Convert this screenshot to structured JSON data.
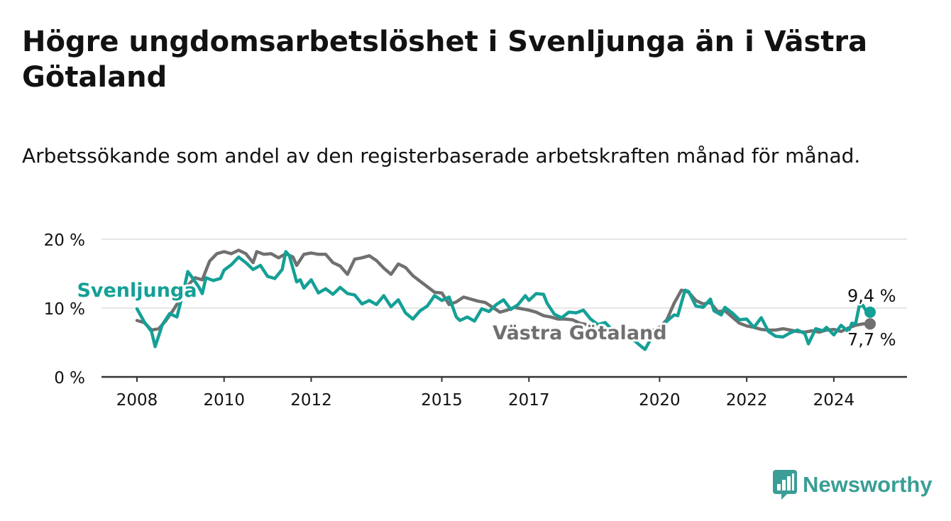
{
  "colors": {
    "svenljunga": "#14a096",
    "vastra_gotaland": "#707070",
    "text": "#121212",
    "grid": "#dddddd",
    "axis": "#333333",
    "brand": "#3a9e96"
  },
  "brand": {
    "name": "Newsworthy",
    "icon": "newsworthy-logo-icon"
  },
  "chart_data": {
    "type": "line",
    "title": "Högre ungdomsarbetslöshet i Svenljunga än i Västra Götaland",
    "subtitle": "Arbetssökande som andel av den registerbaserade arbetskraften månad för månad.",
    "xlabel": "",
    "ylabel": "",
    "xlim": [
      "2008-01",
      "2024-11"
    ],
    "ylim": [
      0,
      20
    ],
    "y_ticks": [
      {
        "value": 0,
        "label": "0 %"
      },
      {
        "value": 10,
        "label": "10 %"
      },
      {
        "value": 20,
        "label": "20 %"
      }
    ],
    "x_ticks": [
      {
        "value": "2008-01",
        "label": "2008"
      },
      {
        "value": "2010-01",
        "label": "2010"
      },
      {
        "value": "2012-01",
        "label": "2012"
      },
      {
        "value": "2015-01",
        "label": "2015"
      },
      {
        "value": "2017-01",
        "label": "2017"
      },
      {
        "value": "2020-01",
        "label": "2020"
      },
      {
        "value": "2022-01",
        "label": "2022"
      },
      {
        "value": "2024-01",
        "label": "2024"
      }
    ],
    "grid": "horizontal",
    "legend": "direct labels on the lines",
    "series": [
      {
        "name": "Svenljunga",
        "color": "#14a096",
        "label_at": "2012-10",
        "end_label": "9,4 %",
        "points": [
          [
            "2008-01",
            9.9
          ],
          [
            "2008-03",
            8.0
          ],
          [
            "2008-05",
            6.6
          ],
          [
            "2008-06",
            4.4
          ],
          [
            "2008-08",
            7.6
          ],
          [
            "2008-10",
            9.2
          ],
          [
            "2008-12",
            8.7
          ],
          [
            "2009-02",
            12.9
          ],
          [
            "2009-03",
            15.3
          ],
          [
            "2009-04",
            14.6
          ],
          [
            "2009-06",
            13.1
          ],
          [
            "2009-07",
            12.1
          ],
          [
            "2009-08",
            14.4
          ],
          [
            "2009-10",
            14.0
          ],
          [
            "2009-12",
            14.3
          ],
          [
            "2010-01",
            15.5
          ],
          [
            "2010-03",
            16.3
          ],
          [
            "2010-05",
            17.4
          ],
          [
            "2010-07",
            16.6
          ],
          [
            "2010-09",
            15.6
          ],
          [
            "2010-11",
            16.2
          ],
          [
            "2011-01",
            14.6
          ],
          [
            "2011-03",
            14.3
          ],
          [
            "2011-05",
            15.6
          ],
          [
            "2011-06",
            18.2
          ],
          [
            "2011-07",
            17.6
          ],
          [
            "2011-09",
            13.8
          ],
          [
            "2011-10",
            14.1
          ],
          [
            "2011-11",
            12.9
          ],
          [
            "2012-01",
            14.1
          ],
          [
            "2012-03",
            12.2
          ],
          [
            "2012-05",
            12.8
          ],
          [
            "2012-07",
            12.0
          ],
          [
            "2012-09",
            13.0
          ],
          [
            "2012-11",
            12.1
          ],
          [
            "2013-01",
            11.9
          ],
          [
            "2013-03",
            10.6
          ],
          [
            "2013-05",
            11.1
          ],
          [
            "2013-07",
            10.5
          ],
          [
            "2013-09",
            11.8
          ],
          [
            "2013-11",
            10.2
          ],
          [
            "2014-01",
            11.2
          ],
          [
            "2014-03",
            9.3
          ],
          [
            "2014-05",
            8.4
          ],
          [
            "2014-07",
            9.6
          ],
          [
            "2014-09",
            10.3
          ],
          [
            "2014-11",
            11.8
          ],
          [
            "2015-01",
            11.1
          ],
          [
            "2015-03",
            11.6
          ],
          [
            "2015-05",
            8.7
          ],
          [
            "2015-06",
            8.2
          ],
          [
            "2015-08",
            8.7
          ],
          [
            "2015-10",
            8.1
          ],
          [
            "2015-12",
            9.9
          ],
          [
            "2016-02",
            9.5
          ],
          [
            "2016-04",
            10.5
          ],
          [
            "2016-06",
            11.2
          ],
          [
            "2016-08",
            9.8
          ],
          [
            "2016-10",
            10.5
          ],
          [
            "2016-12",
            11.8
          ],
          [
            "2017-01",
            11.1
          ],
          [
            "2017-03",
            12.1
          ],
          [
            "2017-05",
            12.0
          ],
          [
            "2017-06",
            10.7
          ],
          [
            "2017-08",
            9.1
          ],
          [
            "2017-10",
            8.6
          ],
          [
            "2017-12",
            9.4
          ],
          [
            "2018-02",
            9.3
          ],
          [
            "2018-04",
            9.7
          ],
          [
            "2018-06",
            8.4
          ],
          [
            "2018-08",
            7.6
          ],
          [
            "2018-10",
            7.9
          ],
          [
            "2018-12",
            6.8
          ],
          [
            "2019-02",
            6.4
          ],
          [
            "2019-04",
            5.9
          ],
          [
            "2019-06",
            5.3
          ],
          [
            "2019-08",
            4.4
          ],
          [
            "2019-09",
            4.0
          ],
          [
            "2019-11",
            5.9
          ],
          [
            "2020-01",
            6.8
          ],
          [
            "2020-03",
            8.1
          ],
          [
            "2020-05",
            9.0
          ],
          [
            "2020-06",
            8.9
          ],
          [
            "2020-08",
            12.6
          ],
          [
            "2020-09",
            12.4
          ],
          [
            "2020-11",
            10.3
          ],
          [
            "2021-01",
            10.1
          ],
          [
            "2021-03",
            11.3
          ],
          [
            "2021-04",
            9.6
          ],
          [
            "2021-06",
            9.0
          ],
          [
            "2021-07",
            10.1
          ],
          [
            "2021-09",
            9.3
          ],
          [
            "2021-11",
            8.3
          ],
          [
            "2022-01",
            8.4
          ],
          [
            "2022-03",
            7.2
          ],
          [
            "2022-05",
            8.6
          ],
          [
            "2022-07",
            6.6
          ],
          [
            "2022-09",
            5.9
          ],
          [
            "2022-11",
            5.8
          ],
          [
            "2023-01",
            6.4
          ],
          [
            "2023-03",
            6.8
          ],
          [
            "2023-05",
            6.3
          ],
          [
            "2023-06",
            4.8
          ],
          [
            "2023-08",
            7.0
          ],
          [
            "2023-10",
            6.7
          ],
          [
            "2023-11",
            7.2
          ],
          [
            "2024-01",
            6.1
          ],
          [
            "2024-03",
            7.5
          ],
          [
            "2024-05",
            6.6
          ],
          [
            "2024-06",
            7.8
          ],
          [
            "2024-07",
            7.7
          ],
          [
            "2024-08",
            10.3
          ],
          [
            "2024-09",
            10.4
          ],
          [
            "2024-10",
            9.5
          ],
          [
            "2024-11",
            9.4
          ]
        ]
      },
      {
        "name": "Västra Götaland",
        "color": "#707070",
        "label_at": "2018-03",
        "end_label": "7,7 %",
        "points": [
          [
            "2008-01",
            8.2
          ],
          [
            "2008-03",
            7.9
          ],
          [
            "2008-05",
            6.8
          ],
          [
            "2008-07",
            7.0
          ],
          [
            "2008-09",
            8.2
          ],
          [
            "2008-11",
            9.7
          ],
          [
            "2009-01",
            11.4
          ],
          [
            "2009-03",
            13.3
          ],
          [
            "2009-05",
            14.4
          ],
          [
            "2009-07",
            14.1
          ],
          [
            "2009-09",
            16.8
          ],
          [
            "2009-11",
            17.9
          ],
          [
            "2010-01",
            18.2
          ],
          [
            "2010-03",
            17.9
          ],
          [
            "2010-05",
            18.4
          ],
          [
            "2010-07",
            17.9
          ],
          [
            "2010-09",
            16.6
          ],
          [
            "2010-10",
            18.2
          ],
          [
            "2010-12",
            17.8
          ],
          [
            "2011-02",
            17.9
          ],
          [
            "2011-04",
            17.3
          ],
          [
            "2011-06",
            17.9
          ],
          [
            "2011-08",
            17.4
          ],
          [
            "2011-09",
            16.2
          ],
          [
            "2011-11",
            17.8
          ],
          [
            "2012-01",
            18.0
          ],
          [
            "2012-03",
            17.8
          ],
          [
            "2012-05",
            17.8
          ],
          [
            "2012-07",
            16.6
          ],
          [
            "2012-09",
            16.1
          ],
          [
            "2012-11",
            14.9
          ],
          [
            "2013-01",
            17.1
          ],
          [
            "2013-03",
            17.3
          ],
          [
            "2013-05",
            17.6
          ],
          [
            "2013-07",
            16.9
          ],
          [
            "2013-09",
            15.8
          ],
          [
            "2013-11",
            14.9
          ],
          [
            "2014-01",
            16.4
          ],
          [
            "2014-03",
            15.9
          ],
          [
            "2014-05",
            14.7
          ],
          [
            "2014-07",
            13.9
          ],
          [
            "2014-09",
            13.1
          ],
          [
            "2014-11",
            12.3
          ],
          [
            "2015-01",
            12.2
          ],
          [
            "2015-03",
            10.5
          ],
          [
            "2015-05",
            10.9
          ],
          [
            "2015-07",
            11.6
          ],
          [
            "2015-09",
            11.3
          ],
          [
            "2015-11",
            11.0
          ],
          [
            "2016-01",
            10.8
          ],
          [
            "2016-03",
            10.1
          ],
          [
            "2016-05",
            9.4
          ],
          [
            "2016-07",
            9.7
          ],
          [
            "2016-09",
            10.1
          ],
          [
            "2016-11",
            9.9
          ],
          [
            "2017-01",
            9.7
          ],
          [
            "2017-03",
            9.4
          ],
          [
            "2017-05",
            8.9
          ],
          [
            "2017-07",
            8.7
          ],
          [
            "2017-09",
            8.4
          ],
          [
            "2017-11",
            8.4
          ],
          [
            "2018-01",
            8.3
          ],
          [
            "2018-03",
            7.8
          ],
          [
            "2018-05",
            7.6
          ],
          [
            "2018-07",
            7.0
          ],
          [
            "2018-09",
            6.9
          ],
          [
            "2018-11",
            6.6
          ],
          [
            "2019-01",
            6.3
          ],
          [
            "2019-03",
            6.0
          ],
          [
            "2019-05",
            5.8
          ],
          [
            "2019-07",
            5.9
          ],
          [
            "2019-09",
            6.2
          ],
          [
            "2019-11",
            6.7
          ],
          [
            "2020-01",
            7.2
          ],
          [
            "2020-03",
            8.3
          ],
          [
            "2020-05",
            10.7
          ],
          [
            "2020-07",
            12.6
          ],
          [
            "2020-09",
            12.3
          ],
          [
            "2020-11",
            11.1
          ],
          [
            "2021-01",
            10.6
          ],
          [
            "2021-03",
            10.8
          ],
          [
            "2021-05",
            9.5
          ],
          [
            "2021-07",
            9.6
          ],
          [
            "2021-09",
            8.7
          ],
          [
            "2021-11",
            7.8
          ],
          [
            "2022-01",
            7.4
          ],
          [
            "2022-03",
            7.2
          ],
          [
            "2022-05",
            6.9
          ],
          [
            "2022-07",
            6.8
          ],
          [
            "2022-09",
            6.8
          ],
          [
            "2022-11",
            7.0
          ],
          [
            "2023-01",
            6.8
          ],
          [
            "2023-03",
            6.6
          ],
          [
            "2023-05",
            6.5
          ],
          [
            "2023-07",
            6.7
          ],
          [
            "2023-09",
            6.5
          ],
          [
            "2023-11",
            6.8
          ],
          [
            "2024-01",
            6.9
          ],
          [
            "2024-03",
            6.6
          ],
          [
            "2024-05",
            7.1
          ],
          [
            "2024-07",
            7.5
          ],
          [
            "2024-09",
            7.7
          ],
          [
            "2024-11",
            7.7
          ]
        ]
      }
    ]
  }
}
